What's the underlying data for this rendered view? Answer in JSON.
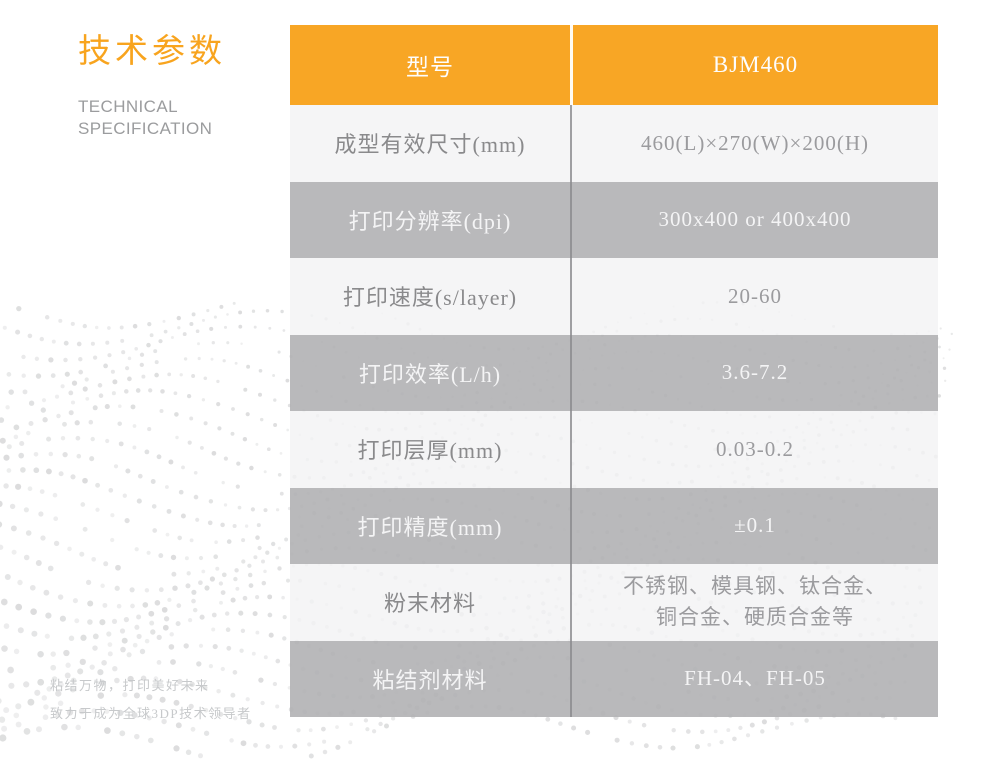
{
  "header_panel": {
    "title_zh": "技术参数",
    "title_en_line1": "TECHNICAL",
    "title_en_line2": "SPECIFICATION"
  },
  "footer": {
    "slogan_line1": "粘结万物，打印美好未来",
    "slogan_line2": "致力于成为全球3DP技术领导者"
  },
  "colors": {
    "accent_orange": "#F8A31E",
    "row_shaded_gray": "#B4B4B6",
    "row_light_gray": "#F3F3F4",
    "divider_gray": "#9A9A9C",
    "label_text_gray": "#8A8A8C",
    "shaded_text_white": "#F4F4F5",
    "subtitle_gray": "#9B9C9E",
    "slogan_gray": "#C7C9CB"
  },
  "table": {
    "header": {
      "model_label": "型号",
      "model_value": "BJM460"
    },
    "rows": [
      {
        "label": "成型有效尺寸(mm)",
        "value": "460(L)×270(W)×200(H)"
      },
      {
        "label": "打印分辨率(dpi)",
        "value": "300x400 or 400x400"
      },
      {
        "label": "打印速度(s/layer)",
        "value": "20-60"
      },
      {
        "label": "打印效率(L/h)",
        "value": "3.6-7.2"
      },
      {
        "label": "打印层厚(mm)",
        "value": "0.03-0.2"
      },
      {
        "label": "打印精度(mm)",
        "value": "±0.1"
      },
      {
        "label": "粉末材料",
        "value": "不锈钢、模具钢、钛合金、\n铜合金、硬质合金等"
      },
      {
        "label": "粘结剂材料",
        "value": "FH-04、FH-05"
      }
    ]
  }
}
